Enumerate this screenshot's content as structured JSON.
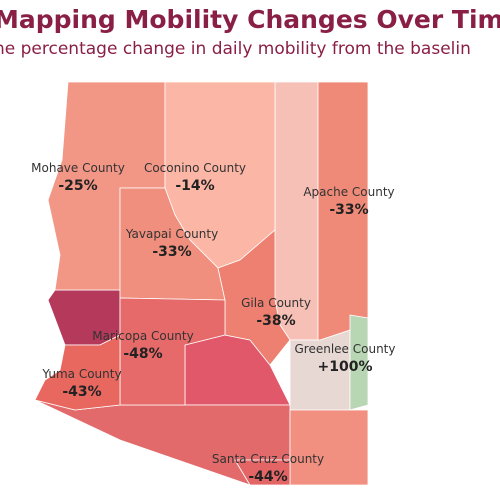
{
  "header": {
    "title": "Mapping Mobility Changes Over Time",
    "subtitle": "he percentage change in daily mobility from the baselin"
  },
  "regions": [
    {
      "name": "Mohave County",
      "value": -25,
      "value_label": "-25%",
      "color": "#f29686"
    },
    {
      "name": "Coconino County",
      "value": -14,
      "value_label": "-14%",
      "color": "#fbb6a5"
    },
    {
      "name": "Apache County",
      "value": -33,
      "value_label": "-33%",
      "color": "#f08a78"
    },
    {
      "name": "Yavapai County",
      "value": -33,
      "value_label": "-33%",
      "color": "#f08f7d"
    },
    {
      "name": "Gila County",
      "value": -38,
      "value_label": "-38%",
      "color": "#ee8072"
    },
    {
      "name": "Maricopa County",
      "value": -48,
      "value_label": "-48%",
      "color": "#e76a6a"
    },
    {
      "name": "Greenlee County",
      "value": 100,
      "value_label": "+100%",
      "color": "#b9d6b4"
    },
    {
      "name": "Yuma County",
      "value": -43,
      "value_label": "-43%",
      "color": "#e8685f"
    },
    {
      "name": "Santa Cruz County",
      "value": -44,
      "value_label": "-44%",
      "color": "#e36565"
    }
  ]
}
